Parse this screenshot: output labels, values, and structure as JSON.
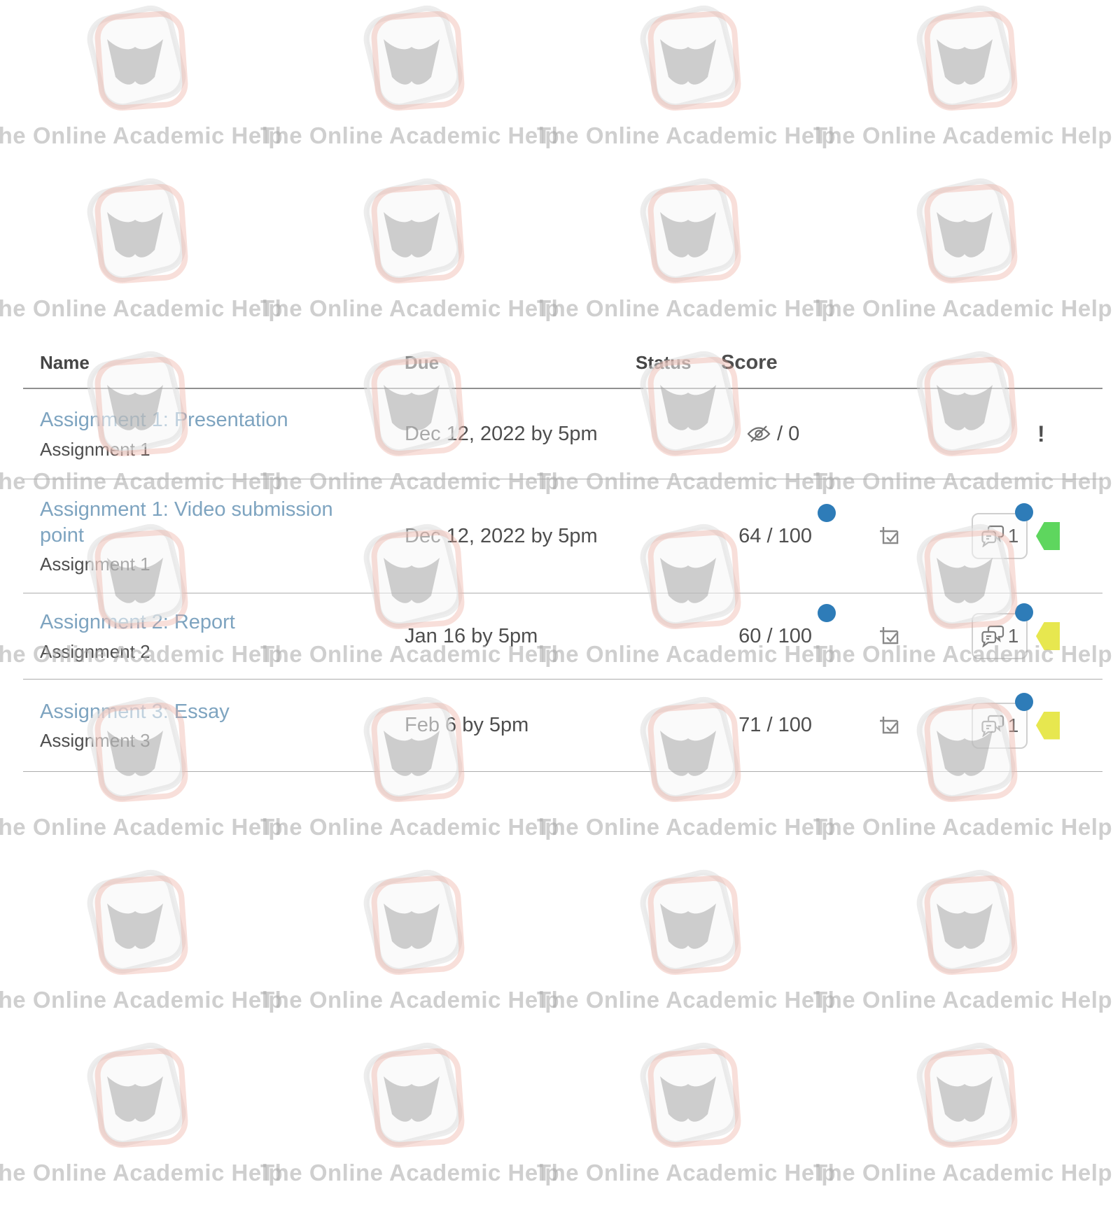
{
  "watermark": {
    "text": "The Online Academic Help"
  },
  "table": {
    "headers": {
      "name": "Name",
      "due": "Due",
      "status": "Status",
      "score": "Score"
    },
    "rows": [
      {
        "title": "Assignment 1: Presentation",
        "subtitle": "Assignment 1",
        "due": "Dec 12, 2022 by 5pm",
        "score": "/ 0",
        "score_hidden": true,
        "score_dot": false,
        "graded_check": false,
        "comments": null,
        "comment_dot": false,
        "tag": null,
        "flag": "!"
      },
      {
        "title": "Assignment 1: Video submission point",
        "subtitle": "Assignment 1",
        "due": "Dec 12, 2022 by 5pm",
        "score": "64 / 100",
        "score_hidden": false,
        "score_dot": true,
        "graded_check": true,
        "comments": "1",
        "comment_dot": true,
        "tag": "green",
        "flag": null
      },
      {
        "title": "Assignment 2: Report",
        "subtitle": "Assignment 2",
        "due": "Jan 16 by 5pm",
        "score": "60 / 100",
        "score_hidden": false,
        "score_dot": true,
        "graded_check": true,
        "comments": "1",
        "comment_dot": true,
        "tag": "yellow",
        "flag": null
      },
      {
        "title": "Assignment 3: Essay",
        "subtitle": "Assignment 3",
        "due": "Feb 6 by 5pm",
        "score": "71 / 100",
        "score_hidden": false,
        "score_dot": false,
        "graded_check": true,
        "comments": "1",
        "comment_dot": true,
        "tag": "yellow",
        "flag": null
      }
    ]
  },
  "colors": {
    "link": "#7ea4c0",
    "body_text": "#4e4e4e",
    "new_dot_blue": "#2e7cb8",
    "tag_green": "#5ed65e",
    "tag_yellow": "#e7e74f",
    "watermark_gray": "#a8a8a8",
    "logo_salmon": "#edab9d"
  }
}
